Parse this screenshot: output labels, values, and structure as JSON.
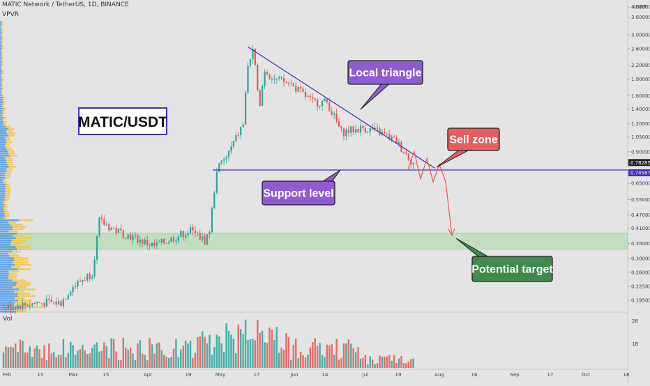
{
  "header": {
    "symbol_line": "MATIC Network / TetherUS, 1D, BINANCE",
    "indicator": "VPVR",
    "vol_label": "Vol",
    "price_unit": "USDT"
  },
  "colors": {
    "up": "#26a69a",
    "down": "#ef5350",
    "trendline": "#3f2fb8",
    "support": "#3f2fb8",
    "zone": "#b5dcb5",
    "vp_up": "#3a8fe8",
    "vp_down": "#f3c53a",
    "callout_purple": "#8f5bd0",
    "callout_red": "#e55d5d",
    "callout_green": "#3f8a4c",
    "projection": "#ef5350"
  },
  "annotations": {
    "title_box": "MATIC/USDT",
    "local_triangle": "Local triangle",
    "sell_zone": "Sell zone",
    "support_level": "Support level",
    "potential_target": "Potential target"
  },
  "chart_data": {
    "type": "candlestick",
    "title": "MATIC Network / TetherUS, 1D, BINANCE",
    "y_scale": "log",
    "ylim": [
      0.175,
      4.0
    ],
    "y_ticks": [
      "4.00000",
      "3.60000",
      "3.00000",
      "2.60000",
      "2.20000",
      "1.90000",
      "1.60000",
      "1.40000",
      "1.20000",
      "1.05000",
      "0.90000",
      "0.65000",
      "0.55000",
      "0.47000",
      "0.41000",
      "0.35000",
      "0.30000",
      "0.26000",
      "0.22500",
      "0.19500"
    ],
    "x_ticks": [
      "Feb",
      "15",
      "Mar",
      "15",
      "Apr",
      "19",
      "May",
      "17",
      "Jun",
      "14",
      "Jul",
      "19",
      "Aug",
      "16",
      "Sep",
      "17",
      "Oct",
      "18"
    ],
    "price_labels": [
      {
        "value": "0.78285",
        "style": "dark"
      },
      {
        "value": "0.74587",
        "style": "purple"
      }
    ],
    "volume_ticks": [
      "28",
      "1B"
    ],
    "support_level": 0.74587,
    "target_zone": [
      0.33,
      0.39
    ],
    "trendline": {
      "from": {
        "date": "May 14",
        "price": 2.65
      },
      "to": {
        "date": "Jul 31",
        "price": 0.76
      }
    },
    "projection_path": [
      0.75,
      0.9,
      0.68,
      0.84,
      0.66,
      0.79,
      0.66,
      0.38
    ],
    "price_path": [
      [
        "Feb 1",
        0.18
      ],
      [
        "Feb 15",
        0.19
      ],
      [
        "Feb 25",
        0.19
      ],
      [
        "Mar 1",
        0.22
      ],
      [
        "Mar 10",
        0.26
      ],
      [
        "Mar 13",
        0.44
      ],
      [
        "Mar 20",
        0.4
      ],
      [
        "Apr 5",
        0.34
      ],
      [
        "Apr 20",
        0.4
      ],
      [
        "Apr 26",
        0.36
      ],
      [
        "Apr 28",
        0.4
      ],
      [
        "May 1",
        0.75
      ],
      [
        "May 5",
        0.85
      ],
      [
        "May 12",
        1.2
      ],
      [
        "May 14",
        2.2
      ],
      [
        "May 16",
        2.5
      ],
      [
        "May 19",
        1.5
      ],
      [
        "May 21",
        2.1
      ],
      [
        "May 25",
        1.9
      ],
      [
        "Jun 1",
        1.8
      ],
      [
        "Jun 10",
        1.5
      ],
      [
        "Jun 16",
        1.5
      ],
      [
        "Jun 22",
        1.1
      ],
      [
        "Jul 1",
        1.15
      ],
      [
        "Jul 8",
        1.1
      ],
      [
        "Jul 15",
        1.0
      ],
      [
        "Jul 22",
        0.8
      ]
    ]
  }
}
